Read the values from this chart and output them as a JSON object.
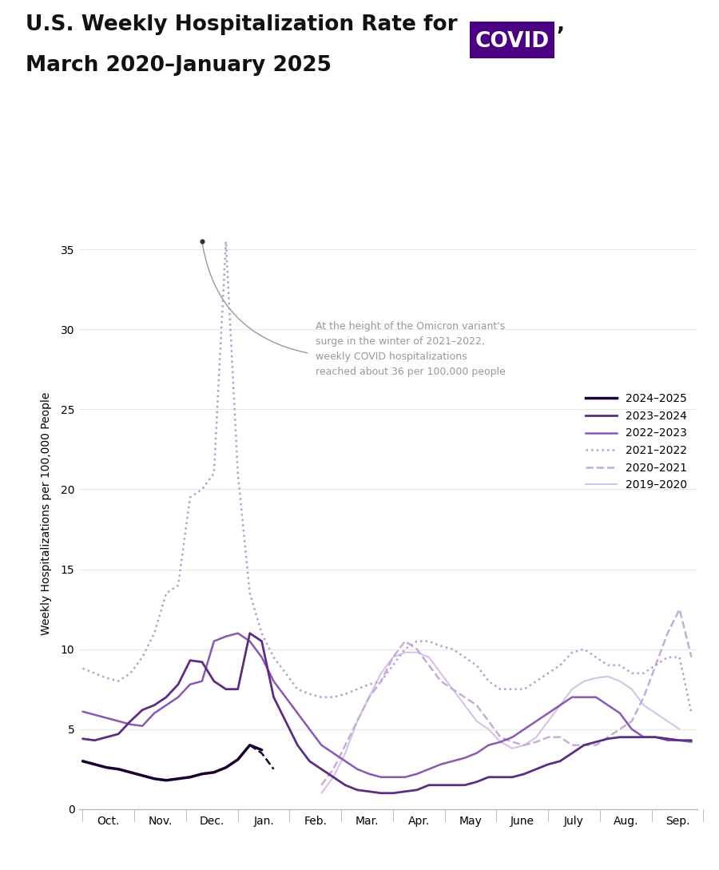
{
  "ylabel": "Weekly Hospitalizations per 100,000 People",
  "annotation_text": "At the height of the Omicron variant's\nsurge in the winter of 2021–2022,\nweekly COVID hospitalizations\nreached about 36 per 100,000 people",
  "x_labels": [
    "Oct.",
    "Nov.",
    "Dec.",
    "Jan.",
    "Feb.",
    "Mar.",
    "Apr.",
    "May",
    "June",
    "July",
    "Aug.",
    "Sep."
  ],
  "ylim": [
    0,
    37
  ],
  "yticks": [
    0,
    5,
    10,
    15,
    20,
    25,
    30,
    35
  ],
  "background_color": "#ffffff",
  "grid_color": "#e8e8e8",
  "covid_box_color": "#4B0082",
  "series_colors": {
    "2024-2025": "#1a0030",
    "2023-2024": "#5c2d82",
    "2022-2023": "#8b57b5",
    "2021-2022": "#b89dd4",
    "2020-2021": "#c5add8",
    "2019-2020": "#d4c3e8"
  },
  "s_2024_2025": [
    3.0,
    2.8,
    2.6,
    2.5,
    2.3,
    2.1,
    1.9,
    1.8,
    1.9,
    2.0,
    2.2,
    2.3,
    2.6,
    3.1,
    4.0,
    3.7,
    null,
    null,
    null,
    null,
    null,
    null,
    null,
    null,
    null,
    null,
    null,
    null,
    null,
    null,
    null,
    null,
    null,
    null,
    null,
    null,
    null,
    null,
    null,
    null,
    null,
    null,
    null,
    null,
    null,
    null,
    null,
    null,
    null,
    null,
    null,
    null
  ],
  "s_2024_2025_tail": [
    null,
    null,
    null,
    null,
    null,
    null,
    null,
    null,
    null,
    null,
    null,
    null,
    null,
    null,
    4.0,
    3.5,
    2.5,
    null,
    null,
    null,
    null,
    null,
    null,
    null,
    null,
    null,
    null,
    null,
    null,
    null,
    null,
    null,
    null,
    null,
    null,
    null,
    null,
    null,
    null,
    null,
    null,
    null,
    null,
    null,
    null,
    null,
    null,
    null,
    null,
    null,
    null,
    null
  ],
  "s_2023_2024": [
    4.4,
    4.3,
    4.5,
    4.7,
    5.5,
    6.2,
    6.5,
    7.0,
    7.8,
    9.3,
    9.2,
    8.0,
    7.5,
    7.5,
    11.0,
    10.5,
    7.0,
    5.5,
    4.0,
    3.0,
    2.5,
    2.0,
    1.5,
    1.2,
    1.1,
    1.0,
    1.0,
    1.1,
    1.2,
    1.5,
    1.5,
    1.5,
    1.5,
    1.7,
    2.0,
    2.0,
    2.0,
    2.2,
    2.5,
    2.8,
    3.0,
    3.5,
    4.0,
    4.2,
    4.4,
    4.5,
    4.5,
    4.5,
    4.5,
    4.4,
    4.3,
    4.3
  ],
  "s_2022_2023": [
    6.1,
    5.9,
    5.7,
    5.5,
    5.3,
    5.2,
    6.0,
    6.5,
    7.0,
    7.8,
    8.0,
    10.5,
    10.8,
    11.0,
    10.5,
    9.5,
    8.0,
    7.0,
    6.0,
    5.0,
    4.0,
    3.5,
    3.0,
    2.5,
    2.2,
    2.0,
    2.0,
    2.0,
    2.2,
    2.5,
    2.8,
    3.0,
    3.2,
    3.5,
    4.0,
    4.2,
    4.5,
    5.0,
    5.5,
    6.0,
    6.5,
    7.0,
    7.0,
    7.0,
    6.5,
    6.0,
    5.0,
    4.5,
    4.5,
    4.3,
    4.3,
    4.2
  ],
  "s_2021_2022": [
    8.8,
    8.5,
    8.2,
    8.0,
    8.5,
    9.5,
    11.0,
    13.5,
    14.0,
    19.5,
    20.0,
    21.0,
    35.5,
    21.0,
    13.5,
    11.0,
    9.5,
    8.5,
    7.5,
    7.2,
    7.0,
    7.0,
    7.2,
    7.5,
    7.8,
    8.0,
    9.0,
    10.0,
    10.5,
    10.5,
    10.2,
    10.0,
    9.5,
    9.0,
    8.0,
    7.5,
    7.5,
    7.5,
    8.0,
    8.5,
    9.0,
    9.8,
    10.0,
    9.5,
    9.0,
    9.0,
    8.5,
    8.5,
    9.0,
    9.5,
    9.5,
    6.0
  ],
  "s_2020_2021": [
    null,
    null,
    null,
    null,
    null,
    null,
    null,
    null,
    null,
    null,
    null,
    null,
    null,
    null,
    null,
    null,
    null,
    null,
    null,
    null,
    1.5,
    2.5,
    4.0,
    5.5,
    7.0,
    8.0,
    9.5,
    10.5,
    10.0,
    9.0,
    8.0,
    7.5,
    7.0,
    6.5,
    5.5,
    4.5,
    4.2,
    4.0,
    4.2,
    4.5,
    4.5,
    4.0,
    4.0,
    4.0,
    4.5,
    5.0,
    5.5,
    7.0,
    9.0,
    11.0,
    12.5,
    9.5
  ],
  "s_2019_2020": [
    null,
    null,
    null,
    null,
    null,
    null,
    null,
    null,
    null,
    null,
    null,
    null,
    null,
    null,
    null,
    null,
    null,
    null,
    null,
    null,
    1.0,
    2.0,
    3.5,
    5.5,
    7.0,
    8.5,
    9.5,
    9.8,
    9.8,
    9.5,
    8.5,
    7.5,
    6.5,
    5.5,
    5.0,
    4.2,
    3.8,
    4.0,
    4.5,
    5.5,
    6.5,
    7.5,
    8.0,
    8.2,
    8.3,
    8.0,
    7.5,
    6.5,
    6.0,
    5.5,
    5.0,
    null
  ]
}
